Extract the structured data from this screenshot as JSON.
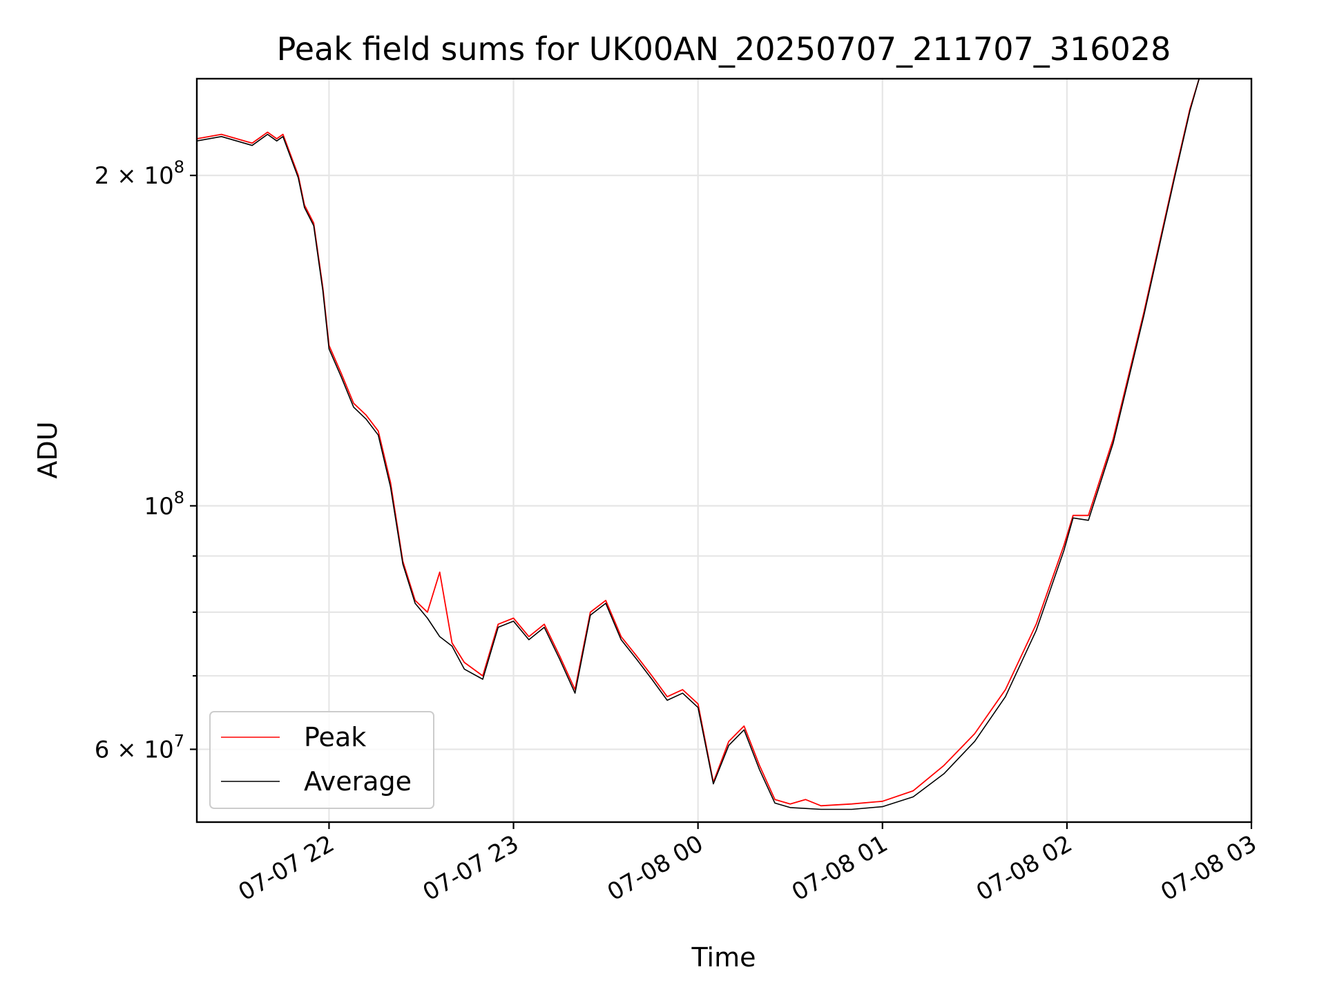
{
  "chart_data": {
    "type": "line",
    "title": "Peak field sums for UK00AN_20250707_211707_316028",
    "xlabel": "Time",
    "ylabel": "ADU",
    "y_scale": "log",
    "ylim": [
      51500000,
      245000000
    ],
    "grid": true,
    "legend_position": "lower-left",
    "x_ticks": [
      {
        "value": "2025-07-07 22:00",
        "label": "07-07 22"
      },
      {
        "value": "2025-07-07 23:00",
        "label": "07-07 23"
      },
      {
        "value": "2025-07-08 00:00",
        "label": "07-08 00"
      },
      {
        "value": "2025-07-08 01:00",
        "label": "07-08 01"
      },
      {
        "value": "2025-07-08 02:00",
        "label": "07-08 02"
      },
      {
        "value": "2025-07-08 03:00",
        "label": "07-08 03"
      }
    ],
    "xlim": [
      "2025-07-07 21:17",
      "2025-07-08 03:00"
    ],
    "y_ticks": [
      {
        "value": 60000000,
        "label": "6 × 10",
        "exp": "7"
      },
      {
        "value": 100000000,
        "label": "10",
        "exp": "8"
      },
      {
        "value": 200000000,
        "label": "2 × 10",
        "exp": "8"
      }
    ],
    "y_minor_ticks": [
      70000000,
      80000000,
      90000000
    ],
    "series": [
      {
        "name": "Peak",
        "color": "#ff0000",
        "x": [
          "2025-07-07 21:17",
          "2025-07-07 21:25",
          "2025-07-07 21:35",
          "2025-07-07 21:40",
          "2025-07-07 21:43",
          "2025-07-07 21:45",
          "2025-07-07 21:50",
          "2025-07-07 21:52",
          "2025-07-07 21:55",
          "2025-07-07 21:58",
          "2025-07-07 22:00",
          "2025-07-07 22:04",
          "2025-07-07 22:08",
          "2025-07-07 22:12",
          "2025-07-07 22:16",
          "2025-07-07 22:20",
          "2025-07-07 22:24",
          "2025-07-07 22:28",
          "2025-07-07 22:32",
          "2025-07-07 22:36",
          "2025-07-07 22:40",
          "2025-07-07 22:44",
          "2025-07-07 22:50",
          "2025-07-07 22:55",
          "2025-07-07 23:00",
          "2025-07-07 23:05",
          "2025-07-07 23:10",
          "2025-07-07 23:15",
          "2025-07-07 23:20",
          "2025-07-07 23:25",
          "2025-07-07 23:30",
          "2025-07-07 23:35",
          "2025-07-07 23:40",
          "2025-07-07 23:45",
          "2025-07-07 23:50",
          "2025-07-07 23:55",
          "2025-07-08 00:00",
          "2025-07-08 00:05",
          "2025-07-08 00:10",
          "2025-07-08 00:15",
          "2025-07-08 00:20",
          "2025-07-08 00:25",
          "2025-07-08 00:30",
          "2025-07-08 00:35",
          "2025-07-08 00:40",
          "2025-07-08 00:50",
          "2025-07-08 01:00",
          "2025-07-08 01:10",
          "2025-07-08 01:20",
          "2025-07-08 01:30",
          "2025-07-08 01:40",
          "2025-07-08 01:50",
          "2025-07-08 01:59",
          "2025-07-08 02:02",
          "2025-07-08 02:07",
          "2025-07-08 02:15",
          "2025-07-08 02:25",
          "2025-07-08 02:35",
          "2025-07-08 02:40",
          "2025-07-08 02:43"
        ],
        "y": [
          216000000,
          218000000,
          214000000,
          219000000,
          216000000,
          218000000,
          200000000,
          188000000,
          181000000,
          158000000,
          140000000,
          132000000,
          124000000,
          121000000,
          117000000,
          105000000,
          89000000,
          82000000,
          80000000,
          87000000,
          75000000,
          72000000,
          70000000,
          78000000,
          79000000,
          76000000,
          78000000,
          73000000,
          68000000,
          80000000,
          82000000,
          76000000,
          73000000,
          70000000,
          67000000,
          68000000,
          66000000,
          56000000,
          61000000,
          63000000,
          58000000,
          54000000,
          53500000,
          54000000,
          53300000,
          53500000,
          53800000,
          55000000,
          58000000,
          62000000,
          68000000,
          78000000,
          92000000,
          98000000,
          98000000,
          115000000,
          150000000,
          200000000,
          230000000,
          245000000
        ]
      },
      {
        "name": "Average",
        "color": "#000000",
        "x": [
          "2025-07-07 21:17",
          "2025-07-07 21:25",
          "2025-07-07 21:35",
          "2025-07-07 21:40",
          "2025-07-07 21:43",
          "2025-07-07 21:45",
          "2025-07-07 21:50",
          "2025-07-07 21:52",
          "2025-07-07 21:55",
          "2025-07-07 21:58",
          "2025-07-07 22:00",
          "2025-07-07 22:04",
          "2025-07-07 22:08",
          "2025-07-07 22:12",
          "2025-07-07 22:16",
          "2025-07-07 22:20",
          "2025-07-07 22:24",
          "2025-07-07 22:28",
          "2025-07-07 22:32",
          "2025-07-07 22:36",
          "2025-07-07 22:40",
          "2025-07-07 22:44",
          "2025-07-07 22:50",
          "2025-07-07 22:55",
          "2025-07-07 23:00",
          "2025-07-07 23:05",
          "2025-07-07 23:10",
          "2025-07-07 23:15",
          "2025-07-07 23:20",
          "2025-07-07 23:25",
          "2025-07-07 23:30",
          "2025-07-07 23:35",
          "2025-07-07 23:40",
          "2025-07-07 23:45",
          "2025-07-07 23:50",
          "2025-07-07 23:55",
          "2025-07-08 00:00",
          "2025-07-08 00:05",
          "2025-07-08 00:10",
          "2025-07-08 00:15",
          "2025-07-08 00:20",
          "2025-07-08 00:25",
          "2025-07-08 00:30",
          "2025-07-08 00:35",
          "2025-07-08 00:40",
          "2025-07-08 00:50",
          "2025-07-08 01:00",
          "2025-07-08 01:10",
          "2025-07-08 01:20",
          "2025-07-08 01:30",
          "2025-07-08 01:40",
          "2025-07-08 01:50",
          "2025-07-08 01:59",
          "2025-07-08 02:02",
          "2025-07-08 02:07",
          "2025-07-08 02:15",
          "2025-07-08 02:25",
          "2025-07-08 02:35",
          "2025-07-08 02:40",
          "2025-07-08 02:43"
        ],
        "y": [
          215000000,
          217000000,
          213000000,
          218000000,
          215000000,
          217000000,
          199000000,
          187000000,
          180000000,
          157000000,
          139000000,
          131000000,
          123000000,
          120000000,
          116000000,
          104000000,
          88500000,
          81500000,
          79000000,
          76000000,
          74500000,
          71000000,
          69500000,
          77500000,
          78500000,
          75500000,
          77500000,
          72500000,
          67500000,
          79500000,
          81500000,
          75500000,
          72500000,
          69500000,
          66500000,
          67500000,
          65500000,
          55800000,
          60500000,
          62500000,
          57500000,
          53600000,
          53100000,
          53000000,
          52900000,
          52900000,
          53200000,
          54300000,
          57000000,
          61000000,
          67000000,
          77000000,
          91000000,
          97500000,
          97000000,
          114000000,
          149000000,
          199000000,
          229000000,
          245000000
        ]
      }
    ]
  }
}
